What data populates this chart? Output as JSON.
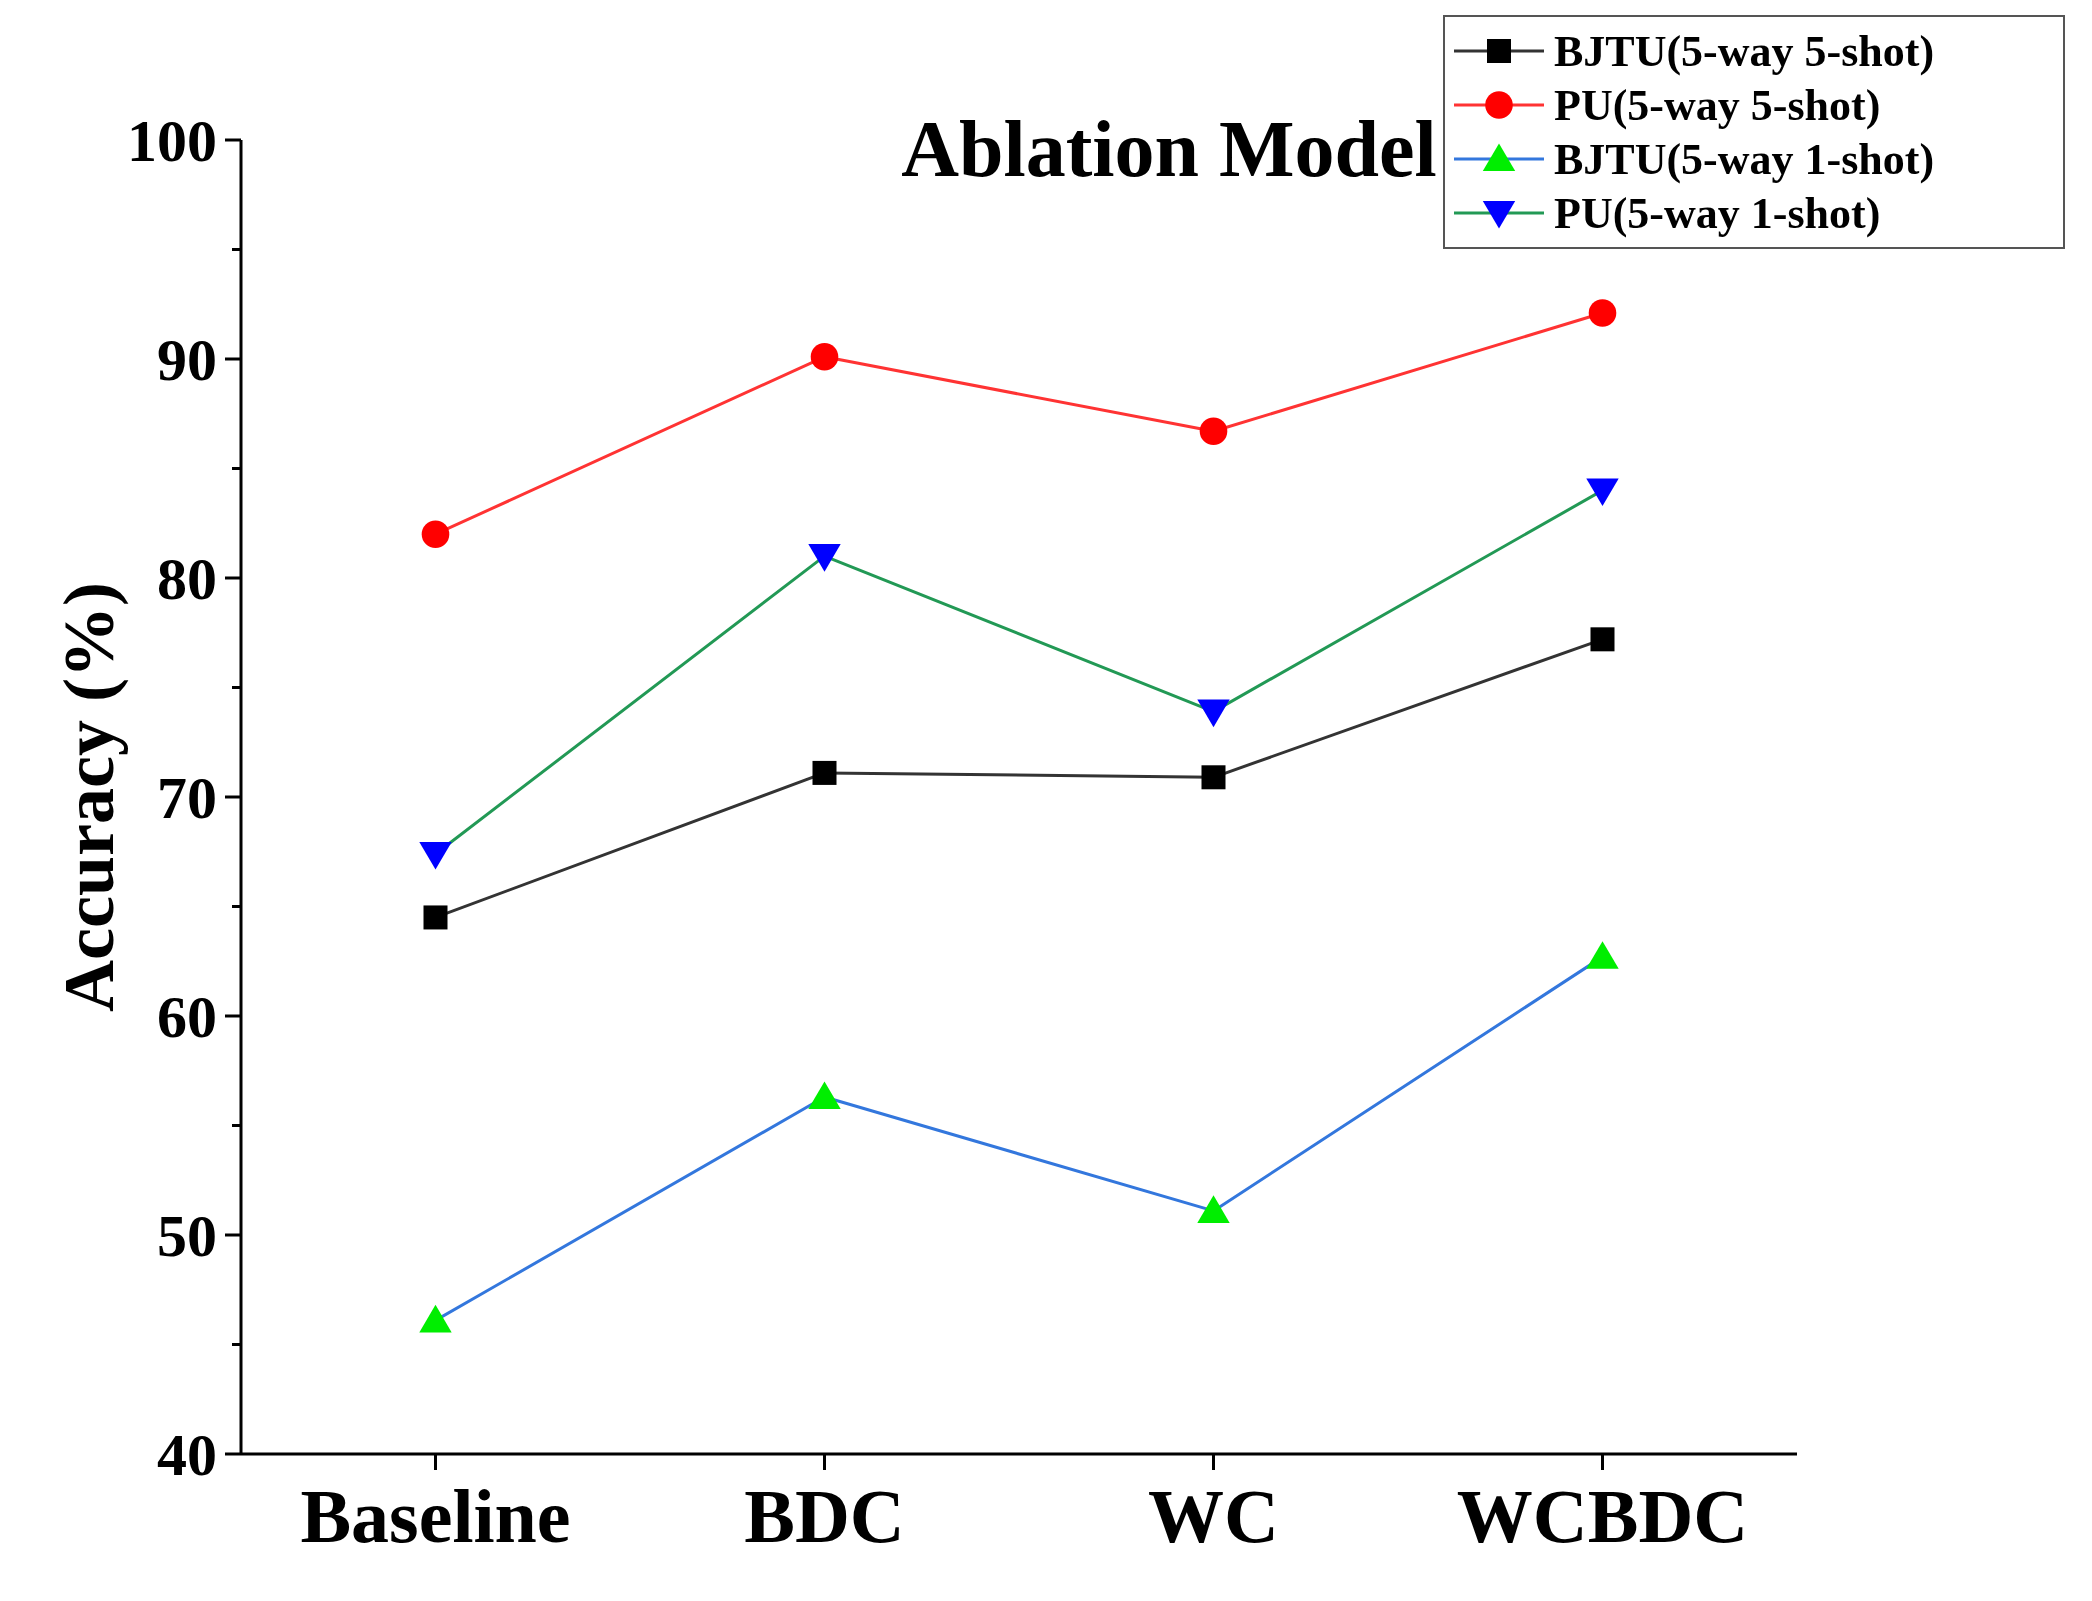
{
  "chart_data": {
    "type": "line",
    "title": "Ablation Model",
    "ylabel": "Accuracy (%)",
    "categories": [
      "Baseline",
      "BDC",
      "WC",
      "WCBDC"
    ],
    "ylim": [
      40,
      100
    ],
    "yticks": [
      40,
      {
        "value": 45,
        "label": null
      },
      50,
      {
        "value": 55,
        "label": null
      },
      60,
      {
        "value": 65,
        "label": null
      },
      70,
      {
        "value": 75,
        "label": null
      },
      80,
      {
        "value": 85,
        "label": null
      },
      90,
      {
        "value": 95,
        "label": null
      },
      100
    ],
    "legend": "top right",
    "grid": false,
    "line_style": "solid",
    "series": [
      {
        "name": "BJTU(5-way 5-shot)",
        "color": "#333333",
        "colors": [
          "#000000",
          "#000000",
          "#000000",
          "#000000"
        ],
        "marker": "square",
        "values": [
          64.5,
          71.1,
          70.9,
          77.2
        ]
      },
      {
        "name": "PU(5-way 5-shot)",
        "color": "#ff3333",
        "colors": [
          "#ff0000",
          "#ff0000",
          "#ff0000",
          "#ff0000"
        ],
        "marker": "circle",
        "values": [
          82.0,
          90.1,
          86.7,
          92.1
        ]
      },
      {
        "name": "BJTU(5-way 1-shot)",
        "color": "#3377dd",
        "colors": [
          "#00ee00",
          "#00ee00",
          "#00ee00",
          "#00ee00"
        ],
        "marker": "triangle",
        "values": [
          46.1,
          56.3,
          51.1,
          62.7
        ]
      },
      {
        "name": "PU(5-way 1-shot)",
        "color": "#229955",
        "colors": [
          "#0000ff",
          "#0000ff",
          "#0000ff",
          "#0000ff"
        ],
        "marker": "triangle-down",
        "values": [
          67.4,
          81.0,
          73.9,
          84.0
        ]
      }
    ]
  }
}
